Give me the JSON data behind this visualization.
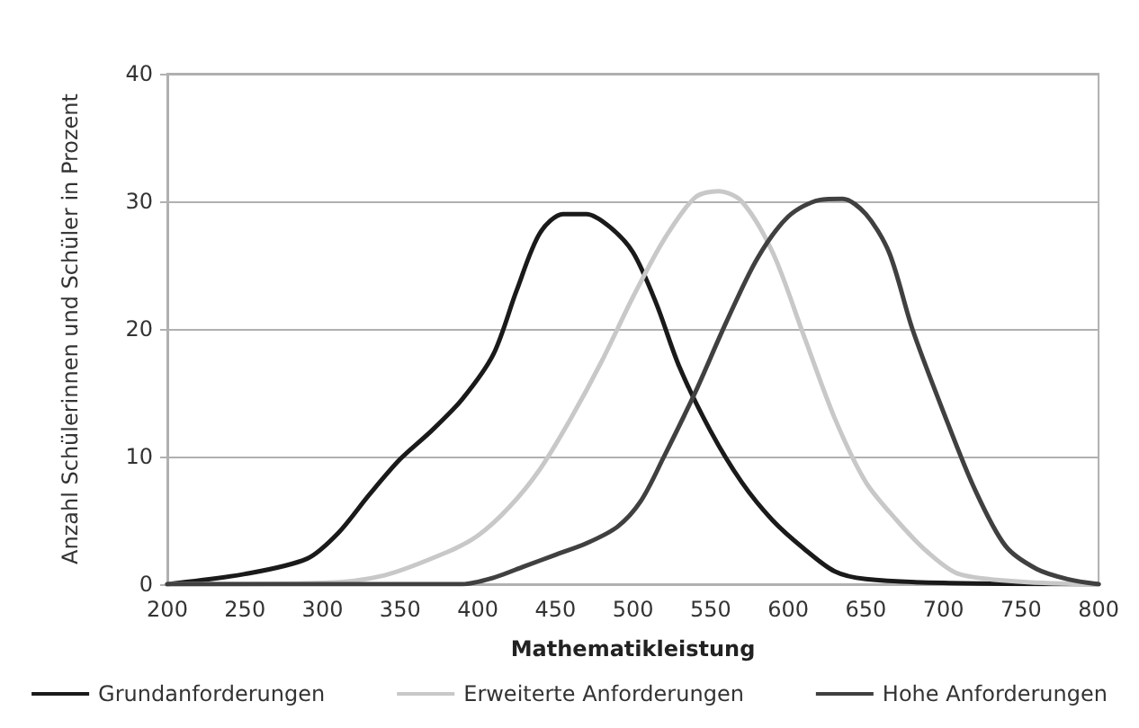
{
  "chart_data": {
    "type": "line",
    "xlabel": "Mathematikleistung",
    "ylabel": "Anzahl Schülerinnen und Schüler in Prozent",
    "xlim": [
      200,
      800
    ],
    "xticks": [
      200,
      250,
      300,
      350,
      400,
      450,
      500,
      550,
      600,
      650,
      700,
      750,
      800
    ],
    "ylim": [
      0,
      40
    ],
    "yticks": [
      0,
      10,
      20,
      30,
      40
    ],
    "grid": "y",
    "legend": "bottom",
    "marker": "none",
    "line_style": "solid",
    "series": [
      {
        "name": "Grundanforderungen",
        "color": "#1a1a1a",
        "x": [
          200,
          250,
          290,
          310,
          330,
          350,
          370,
          390,
          410,
          425,
          440,
          455,
          470,
          485,
          500,
          515,
          530,
          550,
          570,
          590,
          610,
          630,
          650,
          700,
          800
        ],
        "values": [
          0,
          0.8,
          2,
          4,
          7,
          9.8,
          12,
          14.5,
          18,
          23,
          27.5,
          29,
          29,
          28,
          26,
          22,
          17,
          12,
          8,
          5,
          2.8,
          1,
          0.4,
          0.1,
          0
        ]
      },
      {
        "name": "Erweiterte Anforderungen",
        "color": "#c8c8c8",
        "x": [
          200,
          300,
          340,
          380,
          400,
          420,
          440,
          460,
          480,
          500,
          520,
          540,
          555,
          570,
          590,
          610,
          630,
          650,
          670,
          690,
          710,
          750,
          800
        ],
        "values": [
          0,
          0.1,
          0.7,
          2.5,
          3.8,
          6,
          9,
          13,
          17.5,
          22.5,
          27,
          30.3,
          30.8,
          30,
          26,
          19.5,
          13,
          8,
          5,
          2.5,
          0.8,
          0.2,
          0
        ]
      },
      {
        "name": "Hohe Anforderungen",
        "color": "#404040",
        "x": [
          200,
          390,
          410,
          430,
          450,
          470,
          490,
          505,
          520,
          540,
          560,
          580,
          600,
          620,
          635,
          650,
          665,
          680,
          700,
          720,
          740,
          760,
          780,
          800
        ],
        "values": [
          0,
          0,
          0.5,
          1.4,
          2.3,
          3.2,
          4.5,
          6.5,
          10,
          15,
          20.5,
          25.5,
          28.8,
          30.1,
          30.2,
          29,
          26,
          20,
          13.5,
          7.5,
          3,
          1.2,
          0.4,
          0
        ]
      }
    ]
  }
}
